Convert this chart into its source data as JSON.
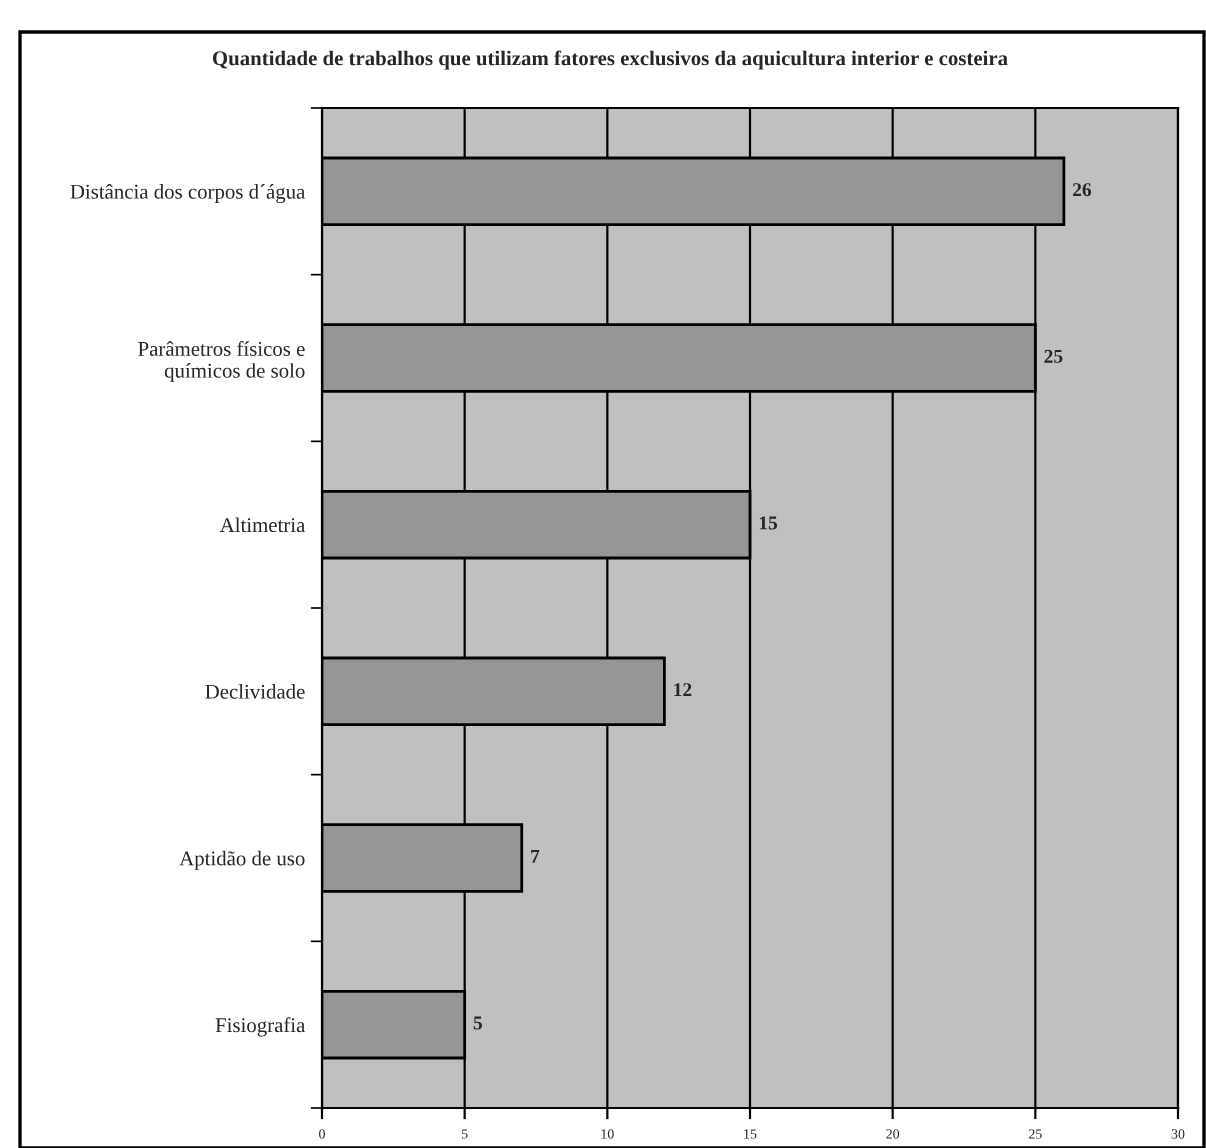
{
  "chart_data": {
    "type": "bar",
    "orientation": "horizontal",
    "title": "Quantidade de trabalhos que utilizam fatores exclusivos da aquicultura interior e costeira",
    "categories": [
      "Distância dos corpos d´água",
      "Parâmetros físicos e\nquímicos de solo",
      "Altimetria",
      "Declividade",
      "Aptidão de uso",
      "Fisiografia"
    ],
    "values": [
      26,
      25,
      15,
      12,
      7,
      5
    ],
    "color": "#969696",
    "data_labels": true,
    "xlim": [
      0,
      30
    ],
    "xticks": [
      0,
      5,
      10,
      15,
      20,
      25,
      30
    ],
    "grid": "x"
  }
}
